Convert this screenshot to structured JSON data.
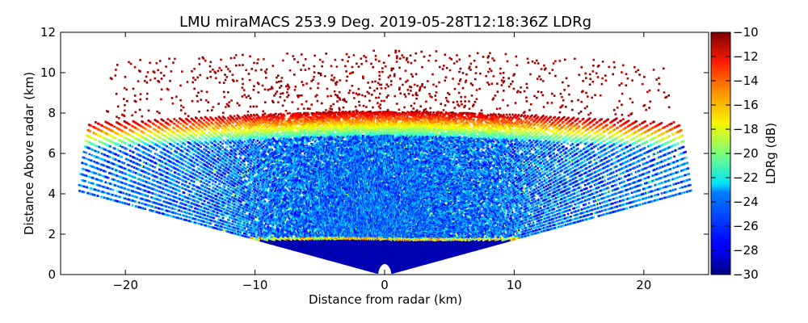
{
  "chart_data": {
    "type": "heatmap",
    "title": "LMU miraMACS 253.9 Deg. 2019-05-28T12:18:36Z  LDRg",
    "xlabel": "Distance from radar (km)",
    "ylabel": "Distance Above radar  (km)",
    "xlim": [
      -25,
      25
    ],
    "ylim": [
      0,
      12
    ],
    "x_ticks": [
      -20,
      -10,
      0,
      10,
      20
    ],
    "y_ticks": [
      0,
      2,
      4,
      6,
      8,
      10,
      12
    ],
    "colorbar": {
      "label": "LDRg (dB)",
      "range": [
        -30,
        -10
      ],
      "ticks": [
        -10,
        -12,
        -14,
        -16,
        -18,
        -20,
        -22,
        -24,
        -26,
        -28,
        -30
      ],
      "colormap": "jet"
    },
    "scan_azimuth_deg": 253.9,
    "features": {
      "range_km": 24,
      "melting_layer_height_km": 1.7,
      "cloud_top_km": 7.8,
      "cloud_main_base_km": 2.2,
      "precip_fill_top_km": 1.6
    }
  }
}
